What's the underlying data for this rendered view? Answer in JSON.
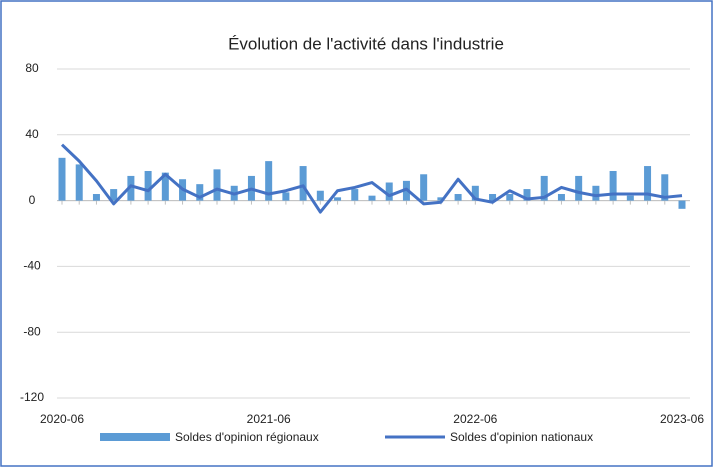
{
  "chart_data": {
    "type": "bar_line",
    "title": "Évolution de l'activité dans l'industrie",
    "categories": [
      "2020-06",
      null,
      null,
      null,
      null,
      null,
      null,
      null,
      null,
      null,
      null,
      null,
      "2021-06",
      null,
      null,
      null,
      null,
      null,
      null,
      null,
      null,
      null,
      null,
      null,
      "2022-06",
      null,
      null,
      null,
      null,
      null,
      null,
      null,
      null,
      null,
      null,
      null,
      "2023-06"
    ],
    "series": [
      {
        "name": "Soldes d'opinion régionaux",
        "type": "bar",
        "color": "#5b9bd5",
        "values": [
          26,
          22,
          4,
          7,
          15,
          18,
          17,
          13,
          10,
          19,
          9,
          15,
          24,
          5,
          21,
          6,
          2,
          7,
          3,
          11,
          12,
          16,
          2,
          4,
          9,
          4,
          4,
          7,
          15,
          4,
          15,
          9,
          18,
          3,
          21,
          16,
          -5
        ]
      },
      {
        "name": "Soldes d'opinion nationaux",
        "type": "line",
        "color": "#4472c4",
        "values": [
          34,
          24,
          12,
          -2,
          9,
          6,
          16,
          7,
          2,
          7,
          4,
          7,
          4,
          6,
          9,
          -7,
          6,
          8,
          11,
          3,
          7,
          -2,
          -1,
          13,
          1,
          -1,
          6,
          1,
          2,
          8,
          5,
          3,
          4,
          4,
          4,
          2,
          3
        ]
      }
    ],
    "ylim": [
      -120,
      80
    ],
    "yticks": [
      80,
      40,
      0,
      -40,
      -80,
      -120
    ],
    "grid": true,
    "legend": "bottom"
  }
}
